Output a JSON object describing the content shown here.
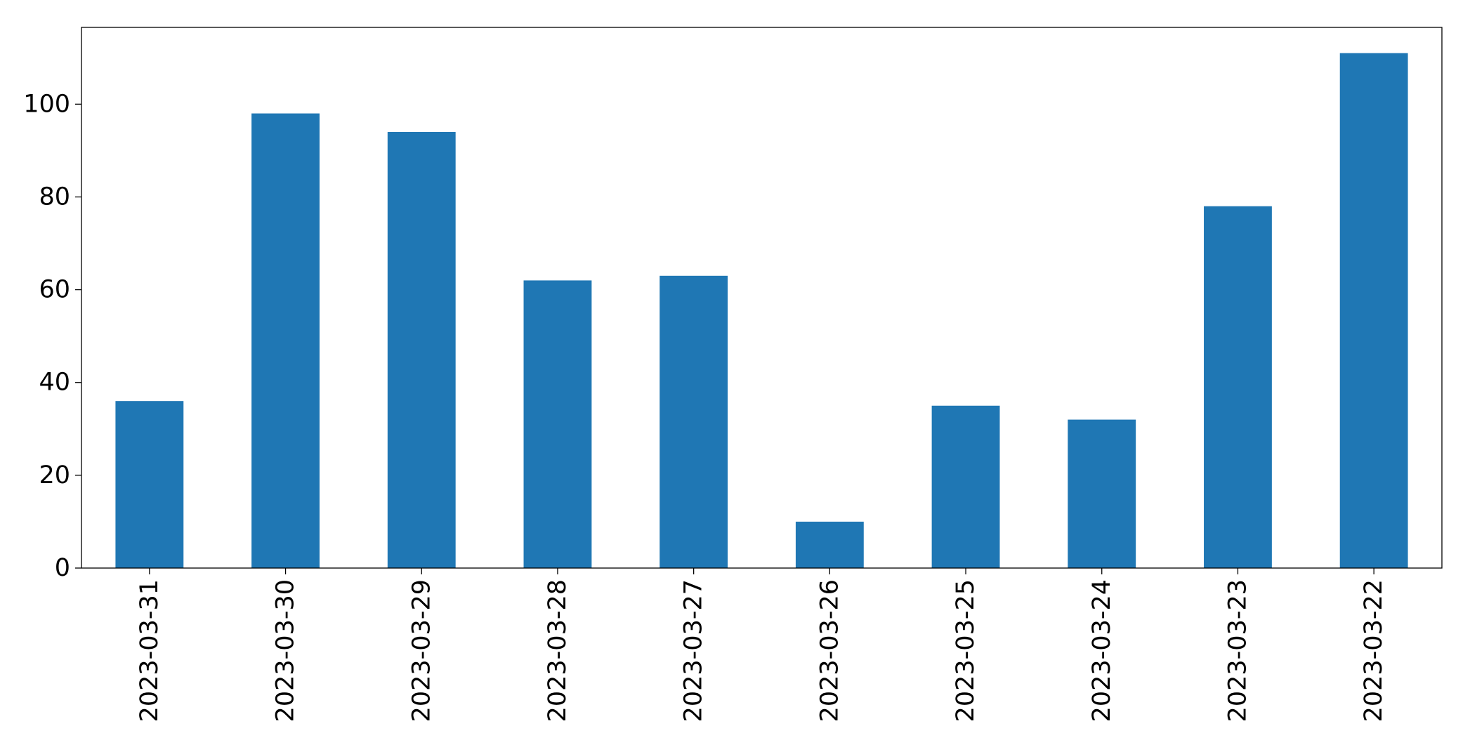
{
  "chart_data": {
    "type": "bar",
    "categories": [
      "2023-03-31",
      "2023-03-30",
      "2023-03-29",
      "2023-03-28",
      "2023-03-27",
      "2023-03-26",
      "2023-03-25",
      "2023-03-24",
      "2023-03-23",
      "2023-03-22"
    ],
    "values": [
      36,
      98,
      94,
      62,
      63,
      10,
      35,
      32,
      78,
      111
    ],
    "color": "#1f77b4",
    "ylim": [
      0,
      116.55
    ],
    "yticks": [
      0,
      20,
      40,
      60,
      80,
      100
    ],
    "grid": false
  }
}
